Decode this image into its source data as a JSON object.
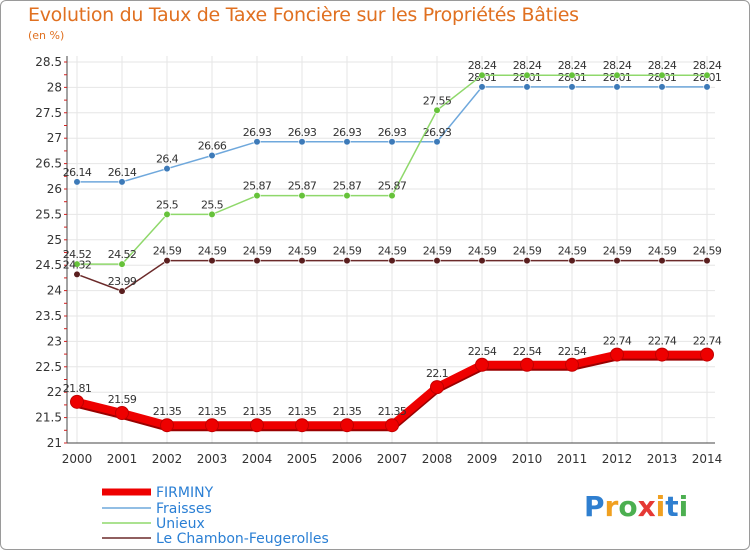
{
  "title": "Evolution du Taux de Taxe Foncière sur les Propriétés Bâties",
  "unit_label": "(en %)",
  "logo": {
    "text": "Proxiti",
    "letters": [
      {
        "ch": "P",
        "color": "#2f7fd0"
      },
      {
        "ch": "r",
        "color": "#f0a020"
      },
      {
        "ch": "o",
        "color": "#4caf50"
      },
      {
        "ch": "x",
        "color": "#e53935"
      },
      {
        "ch": "i",
        "color": "#f0a020"
      },
      {
        "ch": "t",
        "color": "#2f7fd0"
      },
      {
        "ch": "i",
        "color": "#4caf50"
      }
    ]
  },
  "chart_data": {
    "type": "line",
    "title": "Evolution du Taux de Taxe Foncière sur les Propriétés Bâties",
    "ylabel": "(en %)",
    "xlabel": "",
    "ylim": [
      21,
      28.5
    ],
    "yticks": [
      21,
      21.5,
      22,
      22.5,
      23,
      23.5,
      24,
      24.5,
      25,
      25.5,
      26,
      26.5,
      27,
      27.5,
      28,
      28.5
    ],
    "categories": [
      "2000",
      "2001",
      "2002",
      "2003",
      "2004",
      "2005",
      "2006",
      "2007",
      "2008",
      "2009",
      "2010",
      "2011",
      "2012",
      "2013",
      "2014"
    ],
    "grid": true,
    "legend": "bottom-left",
    "series": [
      {
        "name": "FIRMINY",
        "color": "#ee0000",
        "thick": true,
        "values": [
          21.81,
          21.59,
          21.35,
          21.35,
          21.35,
          21.35,
          21.35,
          21.35,
          22.1,
          22.54,
          22.54,
          22.54,
          22.74,
          22.74,
          22.74
        ],
        "labels": [
          "21.81",
          "21.59",
          "21.35",
          "21.35",
          "21.35",
          "21.35",
          "21.35",
          "21.35",
          "22.1",
          "22.54",
          "22.54",
          "22.54",
          "22.74",
          "22.74",
          "22.74"
        ]
      },
      {
        "name": "Fraisses",
        "color": "#6fa8dc",
        "marker": "#3d7ab8",
        "thick": false,
        "values": [
          26.14,
          26.14,
          26.4,
          26.66,
          26.93,
          26.93,
          26.93,
          26.93,
          26.93,
          28.01,
          28.01,
          28.01,
          28.01,
          28.01,
          28.01
        ],
        "labels": [
          "26.14",
          "26.14",
          "26.4",
          "26.66",
          "26.93",
          "26.93",
          "26.93",
          "26.93",
          "26.93",
          "28.01",
          "28.01",
          "28.01",
          "28.01",
          "28.01",
          "28.01"
        ]
      },
      {
        "name": "Unieux",
        "color": "#8fd86b",
        "marker": "#66c23a",
        "thick": false,
        "values": [
          24.52,
          24.52,
          25.5,
          25.5,
          25.87,
          25.87,
          25.87,
          25.87,
          27.55,
          28.24,
          28.24,
          28.24,
          28.24,
          28.24,
          28.24
        ],
        "labels": [
          "24.52",
          "24.52",
          "25.5",
          "25.5",
          "25.87",
          "25.87",
          "25.87",
          "25.87",
          "27.55",
          "28.24",
          "28.24",
          "28.24",
          "28.24",
          "28.24",
          "28.24"
        ]
      },
      {
        "name": "Le Chambon-Feugerolles",
        "color": "#6b2a2a",
        "marker": "#5a1f1f",
        "thick": false,
        "values": [
          24.32,
          23.99,
          24.59,
          24.59,
          24.59,
          24.59,
          24.59,
          24.59,
          24.59,
          24.59,
          24.59,
          24.59,
          24.59,
          24.59,
          24.59
        ],
        "labels": [
          "24.32",
          "23.99",
          "24.59",
          "24.59",
          "24.59",
          "24.59",
          "24.59",
          "24.59",
          "24.59",
          "24.59",
          "24.59",
          "24.59",
          "24.59",
          "24.59",
          "24.59"
        ]
      }
    ]
  }
}
